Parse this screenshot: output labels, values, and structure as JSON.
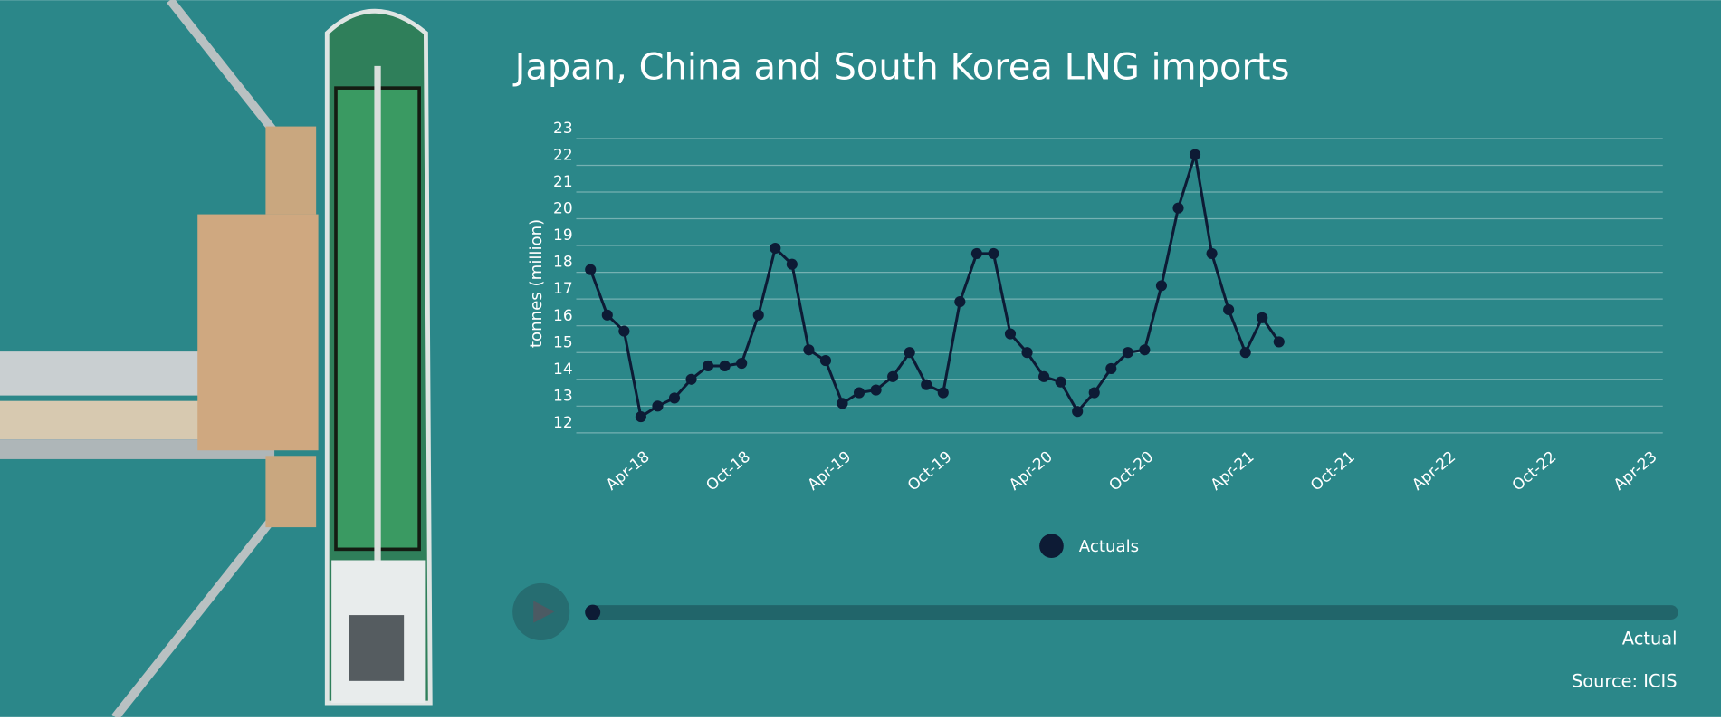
{
  "title": "Japan, China and South Korea LNG imports",
  "chart_data": {
    "type": "line",
    "ylabel": "tonnes (million)",
    "categories": [
      null,
      null,
      null,
      "Apr-18",
      null,
      null,
      null,
      null,
      null,
      "Oct-18",
      null,
      null,
      null,
      null,
      null,
      "Apr-19",
      null,
      null,
      null,
      null,
      null,
      "Oct-19",
      null,
      null,
      null,
      null,
      null,
      "Apr-20",
      null,
      null,
      null,
      null,
      null,
      "Oct-20",
      null,
      null,
      null,
      null,
      null,
      "Apr-21",
      null,
      null,
      null,
      null,
      null,
      "Oct-21",
      null,
      null,
      null,
      null,
      null,
      "Apr-22",
      null,
      null,
      null,
      null,
      null,
      "Oct-22",
      null,
      null,
      null,
      null,
      null,
      "Apr-23"
    ],
    "series": [
      {
        "name": "Actuals",
        "color": "#0d1b35",
        "values": [
          18.1,
          16.4,
          15.8,
          12.6,
          13.0,
          13.3,
          14.0,
          14.5,
          14.5,
          14.6,
          16.4,
          18.9,
          18.3,
          15.1,
          14.7,
          13.1,
          13.5,
          13.6,
          14.1,
          15.0,
          13.8,
          13.5,
          16.9,
          18.7,
          18.7,
          15.7,
          15.0,
          14.1,
          13.9,
          12.8,
          13.5,
          14.4,
          15.0,
          15.1,
          17.5,
          20.4,
          22.4,
          18.7,
          16.6,
          15.0,
          16.3,
          15.4,
          null,
          null,
          null,
          null,
          null,
          null,
          null,
          null,
          null,
          null,
          null,
          null,
          null,
          null,
          null,
          null,
          null,
          null,
          null,
          null,
          null,
          null
        ]
      }
    ],
    "ylim": [
      12,
      23
    ],
    "yticks": [
      12,
      13,
      14,
      15,
      16,
      17,
      18,
      19,
      20,
      21,
      22,
      23
    ],
    "grid": true
  },
  "slider": {
    "label": "Actual"
  },
  "source": "Source: ICIS"
}
